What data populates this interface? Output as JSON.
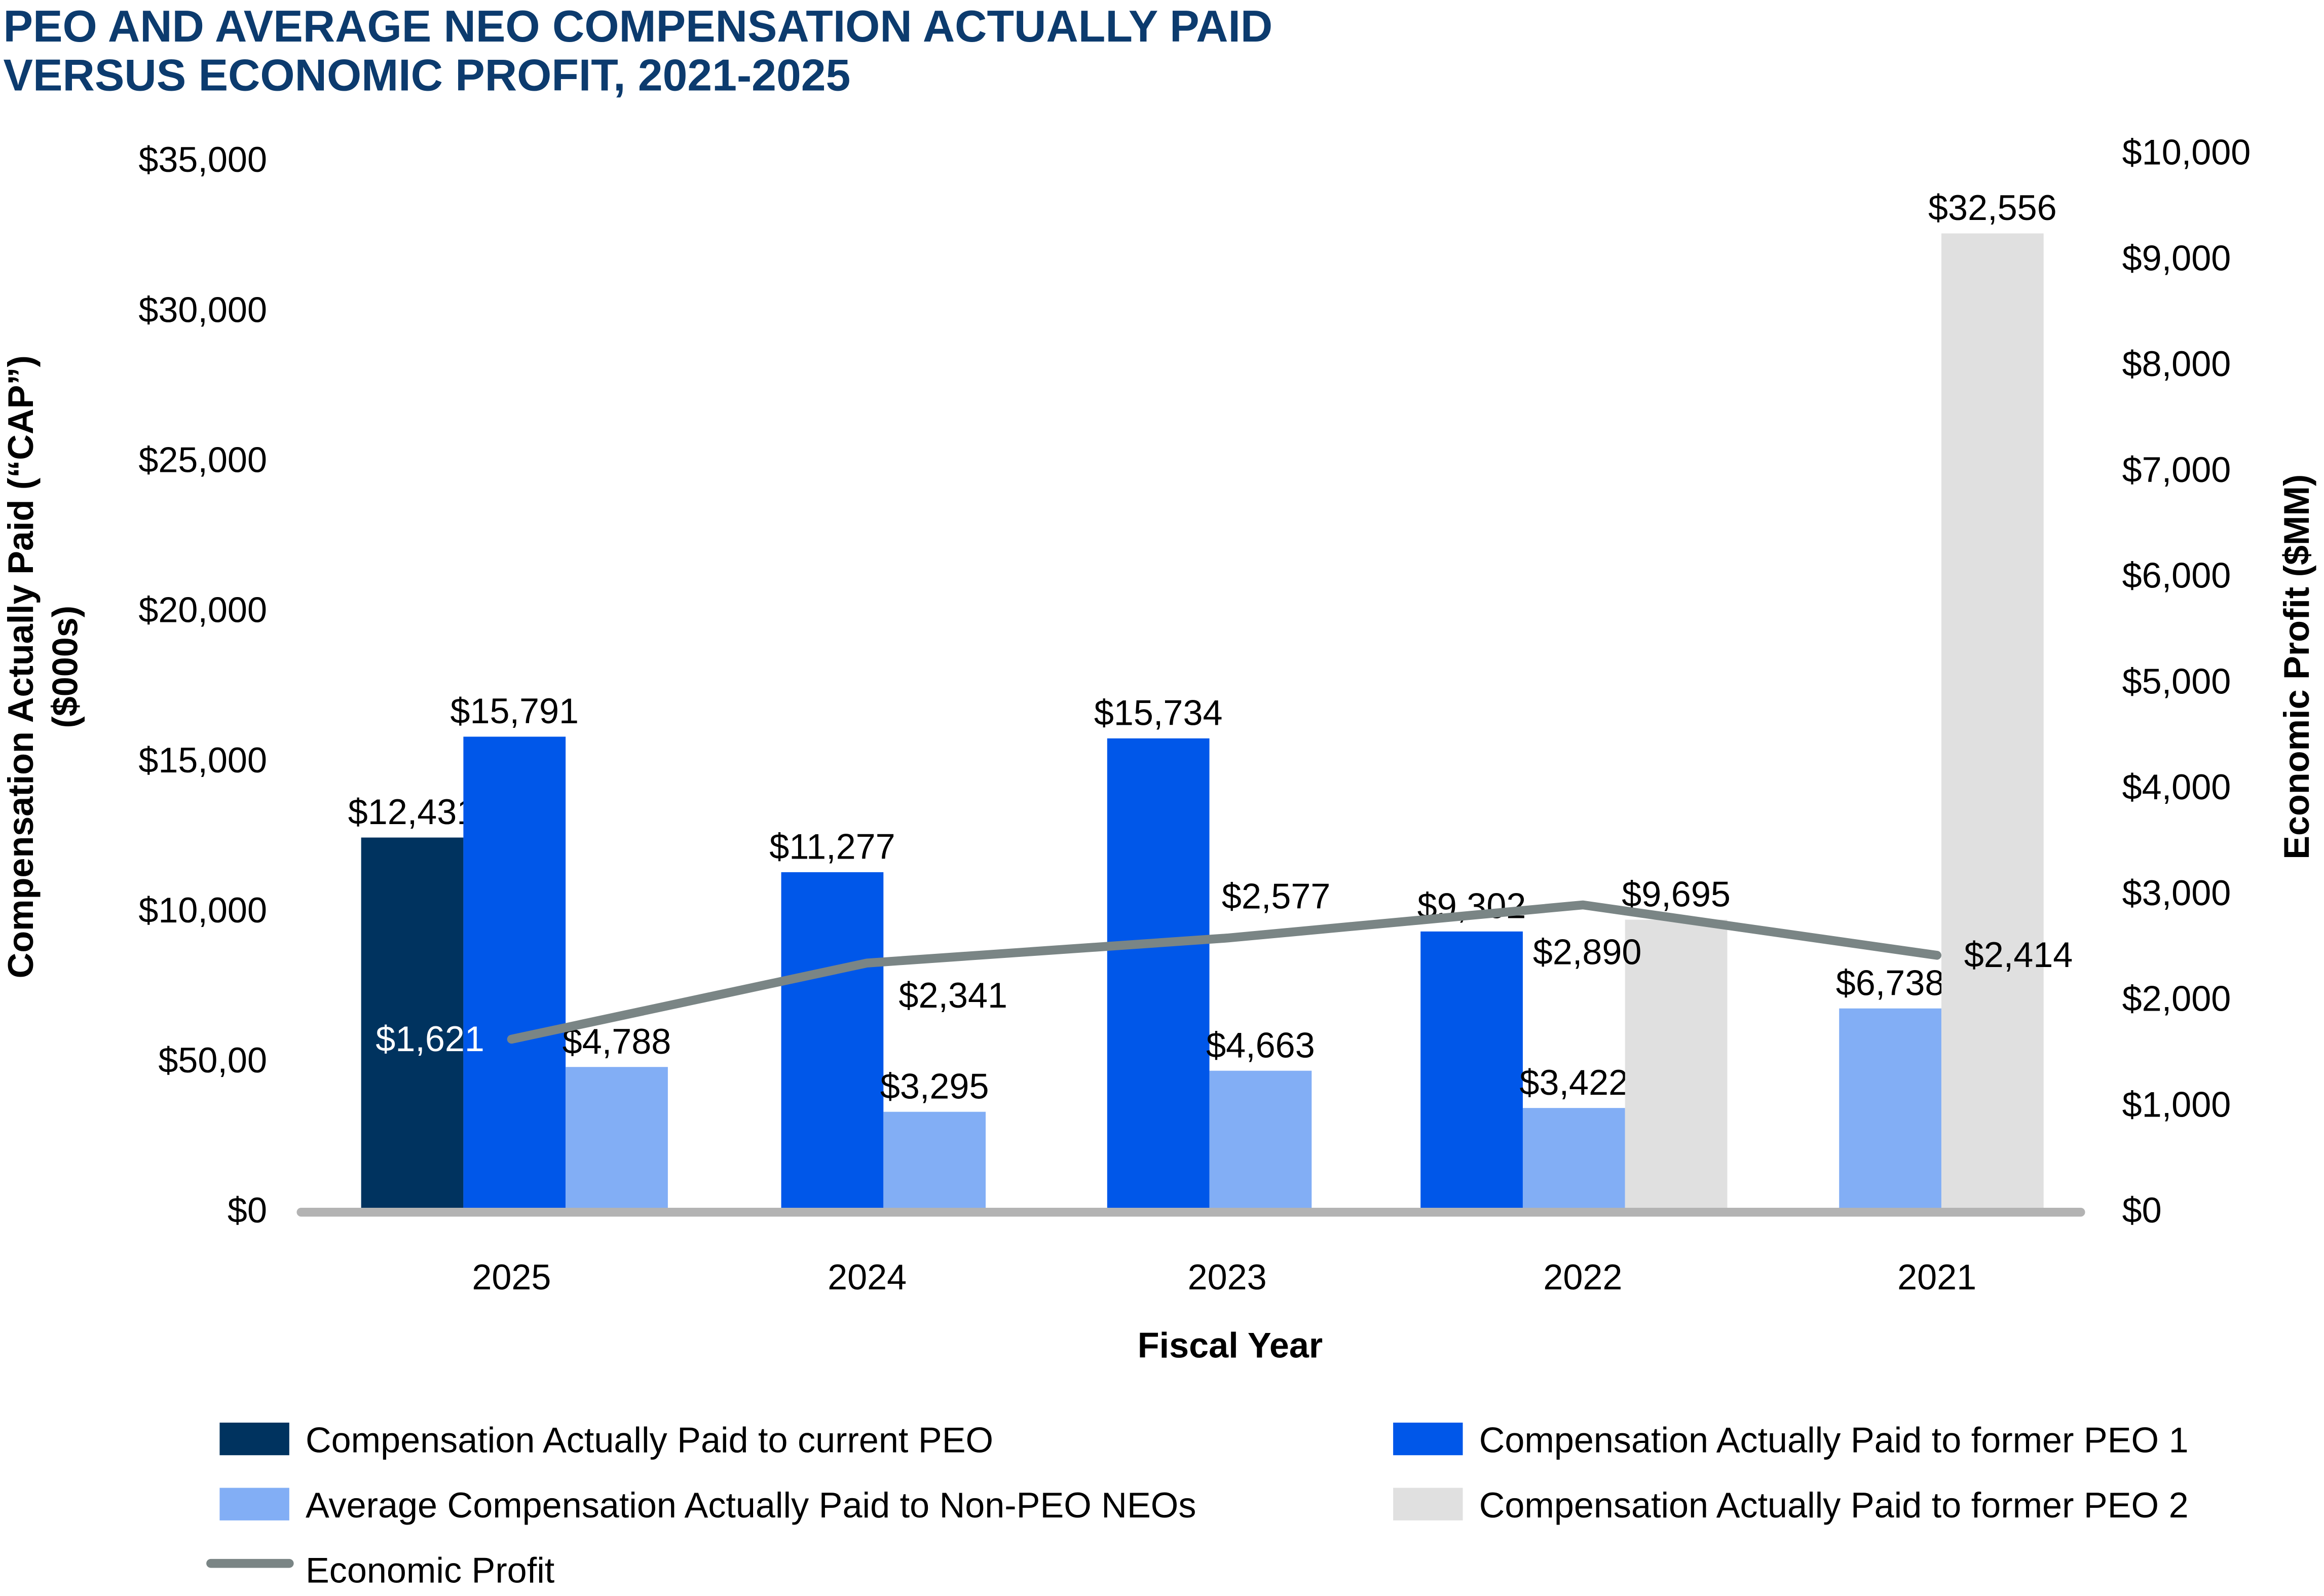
{
  "chart_data": {
    "type": "bar",
    "title_lines": [
      "PEO AND AVERAGE NEO COMPENSATION ACTUALLY PAID",
      "VERSUS ECONOMIC PROFIT, 2021-2025"
    ],
    "xlabel": "Fiscal Year",
    "ylabel_lines": [
      "Compensation Actually Paid (“CAP”)",
      "($000s)"
    ],
    "y2label": "Economic Profit ($MM)",
    "categories": [
      "2025",
      "2024",
      "2023",
      "2022",
      "2021"
    ],
    "ylim": [
      0,
      35000
    ],
    "y2lim": [
      0,
      10000
    ],
    "yticks": [
      "$0",
      "$50,00",
      "$10,000",
      "$15,000",
      "$20,000",
      "$25,000",
      "$30,000",
      "$35,000"
    ],
    "yticks_values": [
      0,
      5000,
      10000,
      15000,
      20000,
      25000,
      30000,
      35000
    ],
    "y2ticks": [
      "$0",
      "$1,000",
      "$2,000",
      "$3,000",
      "$4,000",
      "$5,000",
      "$6,000",
      "$7,000",
      "$8,000",
      "$9,000",
      "$10,000"
    ],
    "y2ticks_values": [
      0,
      1000,
      2000,
      3000,
      4000,
      5000,
      6000,
      7000,
      8000,
      9000,
      10000
    ],
    "grid": false,
    "legend_position": "bottom",
    "series": [
      {
        "name": "Compensation Actually Paid to current PEO",
        "type": "bar",
        "axis": "left",
        "color": "#00335f",
        "values": [
          12431,
          null,
          null,
          null,
          null
        ],
        "labels": [
          "$12,431",
          null,
          null,
          null,
          null
        ]
      },
      {
        "name": "Compensation Actually Paid to former PEO 1",
        "type": "bar",
        "axis": "left",
        "color": "#0057e9",
        "values": [
          15791,
          11277,
          15734,
          9302,
          null
        ],
        "labels": [
          "$15,791",
          "$11,277",
          "$15,734",
          "$9,302",
          null
        ]
      },
      {
        "name": "Average Compensation Actually Paid to Non-PEO NEOs",
        "type": "bar",
        "axis": "left",
        "color": "#82aef5",
        "values": [
          4788,
          3295,
          4663,
          3422,
          6738
        ],
        "labels": [
          "$4,788",
          "$3,295",
          "$4,663",
          "$3,422",
          "$6,738"
        ]
      },
      {
        "name": "Compensation Actually Paid to former PEO 2",
        "type": "bar",
        "axis": "left",
        "color": "#e0e0e0",
        "values": [
          null,
          null,
          null,
          9695,
          32556
        ],
        "labels": [
          null,
          null,
          null,
          "$9,695",
          "$32,556"
        ]
      },
      {
        "name": "Economic Profit",
        "type": "line",
        "axis": "right",
        "color": "#7a8585",
        "values": [
          1621,
          2341,
          2577,
          2890,
          2414
        ],
        "labels": [
          "$1,621",
          "$2,341",
          "$2,577",
          "$2,890",
          "$2,414"
        ]
      }
    ],
    "axis_color": "#b3b3b3"
  }
}
